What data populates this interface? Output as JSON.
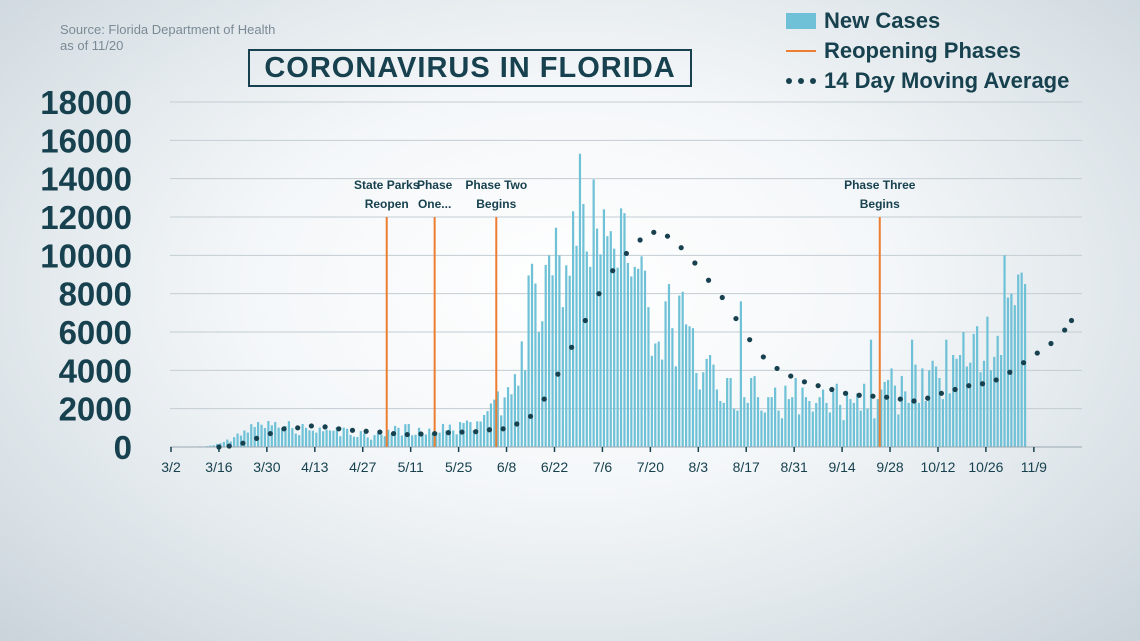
{
  "source": {
    "line1": "Source: Florida Department of Health",
    "line2": "as of 11/20"
  },
  "title": "CORONAVIRUS IN FLORIDA",
  "legend": [
    {
      "label": "New Cases",
      "kind": "bar",
      "color": "#6ec1d6"
    },
    {
      "label": "Reopening Phases",
      "kind": "line",
      "color": "#ed7d31"
    },
    {
      "label": "14 Day Moving Average",
      "kind": "dots",
      "color": "#17414e"
    }
  ],
  "chart_data": {
    "type": "bar",
    "title": "CORONAVIRUS IN FLORIDA",
    "xlabel": "",
    "ylabel": "",
    "ylim": [
      0,
      18000
    ],
    "y_ticks": [
      "0",
      "2000",
      "4000",
      "6000",
      "8000",
      "10000",
      "12000",
      "14000",
      "16000",
      "18000"
    ],
    "x_ticks": [
      "3/2",
      "3/16",
      "3/30",
      "4/13",
      "4/27",
      "5/11",
      "5/25",
      "6/8",
      "6/22",
      "7/6",
      "7/20",
      "8/3",
      "8/17",
      "8/31",
      "9/14",
      "9/28",
      "10/12",
      "10/26",
      "11/9"
    ],
    "grid": true,
    "legend_position": "top-right",
    "series": [
      {
        "name": "New Cases",
        "kind": "bar",
        "values": [
          2,
          0,
          0,
          1,
          8,
          12,
          10,
          10,
          35,
          20,
          45,
          70,
          90,
          150,
          195,
          265,
          390,
          290,
          515,
          705,
          595,
          860,
          755,
          1190,
          1040,
          1300,
          1160,
          990,
          1355,
          1130,
          1300,
          1010,
          970,
          1095,
          1350,
          985,
          700,
          620,
          1200,
          1000,
          870,
          850,
          750,
          1015,
          820,
          900,
          860,
          845,
          1040,
          560,
          1010,
          950,
          630,
          540,
          520,
          830,
          710,
          500,
          380,
          620,
          720,
          650,
          560,
          900,
          700,
          1100,
          1000,
          600,
          1190,
          1200,
          610,
          640,
          1000,
          700,
          650,
          960,
          730,
          770,
          750,
          1200,
          860,
          1170,
          860,
          660,
          1300,
          1250,
          1380,
          1300,
          880,
          1340,
          1330,
          1670,
          1870,
          2270,
          2470,
          2900,
          1650,
          2590,
          3120,
          2750,
          3800,
          3200,
          5510,
          4000,
          8950,
          9560,
          8530,
          6000,
          6560,
          9500,
          10000,
          8960,
          11440,
          10000,
          7300,
          9480,
          8940,
          12300,
          10500,
          15300,
          12680,
          10200,
          9400,
          13960,
          11400,
          10050,
          12400,
          11000,
          11260,
          10350,
          9360,
          12450,
          12200,
          9600,
          8900,
          9400,
          9300,
          9950,
          9200,
          7300,
          4760,
          5400,
          5500,
          4560,
          7600,
          8500,
          6200,
          4210,
          7900,
          8100,
          6400,
          6300,
          6200,
          3860,
          3000,
          3900,
          4600,
          4800,
          4300,
          3000,
          2400,
          2300,
          3600,
          3600,
          2000,
          1900,
          7600,
          2600,
          2300,
          3600,
          3700,
          2600,
          1900,
          1800,
          2600,
          2600,
          3100,
          1900,
          1500,
          3200,
          2500,
          2600,
          3600,
          1700,
          3100,
          2600,
          2400,
          1850,
          2300,
          2600,
          3000,
          2300,
          1800,
          2900,
          3300,
          2200,
          1400,
          2900,
          2500,
          2300,
          2800,
          1900,
          3300,
          2000,
          5600,
          1500,
          2500,
          3000,
          3400,
          3500,
          4100,
          3200,
          1700,
          3700,
          2900,
          2300,
          5600,
          4300,
          2300,
          4100,
          2400,
          4000,
          4500,
          4200,
          3600,
          2500,
          5600,
          2800,
          4800,
          4600,
          4800,
          6000,
          4200,
          4400,
          5900,
          6300,
          3900,
          4500,
          6800,
          4000,
          4700,
          5800,
          4800,
          10000,
          7800,
          8000,
          7400,
          9000,
          9100,
          8500
        ]
      },
      {
        "name": "14 Day Moving Average",
        "kind": "dots",
        "points": [
          [
            "3/16",
            0
          ],
          [
            "3/19",
            50
          ],
          [
            "3/23",
            200
          ],
          [
            "3/27",
            450
          ],
          [
            "3/31",
            700
          ],
          [
            "4/4",
            950
          ],
          [
            "4/8",
            1000
          ],
          [
            "4/12",
            1100
          ],
          [
            "4/16",
            1050
          ],
          [
            "4/20",
            950
          ],
          [
            "4/24",
            870
          ],
          [
            "4/28",
            820
          ],
          [
            "5/2",
            780
          ],
          [
            "5/6",
            700
          ],
          [
            "5/10",
            650
          ],
          [
            "5/14",
            680
          ],
          [
            "5/18",
            700
          ],
          [
            "5/22",
            750
          ],
          [
            "5/26",
            780
          ],
          [
            "5/30",
            800
          ],
          [
            "6/3",
            900
          ],
          [
            "6/7",
            950
          ],
          [
            "6/11",
            1200
          ],
          [
            "6/15",
            1600
          ],
          [
            "6/19",
            2500
          ],
          [
            "6/23",
            3800
          ],
          [
            "6/27",
            5200
          ],
          [
            "7/1",
            6600
          ],
          [
            "7/5",
            8000
          ],
          [
            "7/9",
            9200
          ],
          [
            "7/13",
            10100
          ],
          [
            "7/17",
            10800
          ],
          [
            "7/21",
            11200
          ],
          [
            "7/25",
            11000
          ],
          [
            "7/29",
            10400
          ],
          [
            "8/2",
            9600
          ],
          [
            "8/6",
            8700
          ],
          [
            "8/10",
            7800
          ],
          [
            "8/14",
            6700
          ],
          [
            "8/18",
            5600
          ],
          [
            "8/22",
            4700
          ],
          [
            "8/26",
            4100
          ],
          [
            "8/30",
            3700
          ],
          [
            "9/3",
            3400
          ],
          [
            "9/7",
            3200
          ],
          [
            "9/11",
            3000
          ],
          [
            "9/15",
            2800
          ],
          [
            "9/19",
            2700
          ],
          [
            "9/23",
            2650
          ],
          [
            "9/27",
            2600
          ],
          [
            "10/1",
            2500
          ],
          [
            "10/5",
            2400
          ],
          [
            "10/9",
            2550
          ],
          [
            "10/13",
            2800
          ],
          [
            "10/17",
            3000
          ],
          [
            "10/21",
            3200
          ],
          [
            "10/25",
            3300
          ],
          [
            "10/29",
            3500
          ],
          [
            "11/2",
            3900
          ],
          [
            "11/6",
            4400
          ],
          [
            "11/10",
            4900
          ],
          [
            "11/14",
            5400
          ],
          [
            "11/18",
            6100
          ],
          [
            "11/20",
            6600
          ]
        ]
      }
    ],
    "reopening_phases": [
      {
        "date": "5/4",
        "label": [
          "State Parks",
          "Reopen"
        ],
        "top_value": 12000
      },
      {
        "date": "5/18",
        "label": [
          "Phase",
          "One..."
        ],
        "top_value": 12000
      },
      {
        "date": "6/5",
        "label": [
          "Phase Two",
          "Begins"
        ],
        "top_value": 12000
      },
      {
        "date": "9/25",
        "label": [
          "Phase Three",
          "Begins"
        ],
        "top_value": 12000
      }
    ]
  }
}
